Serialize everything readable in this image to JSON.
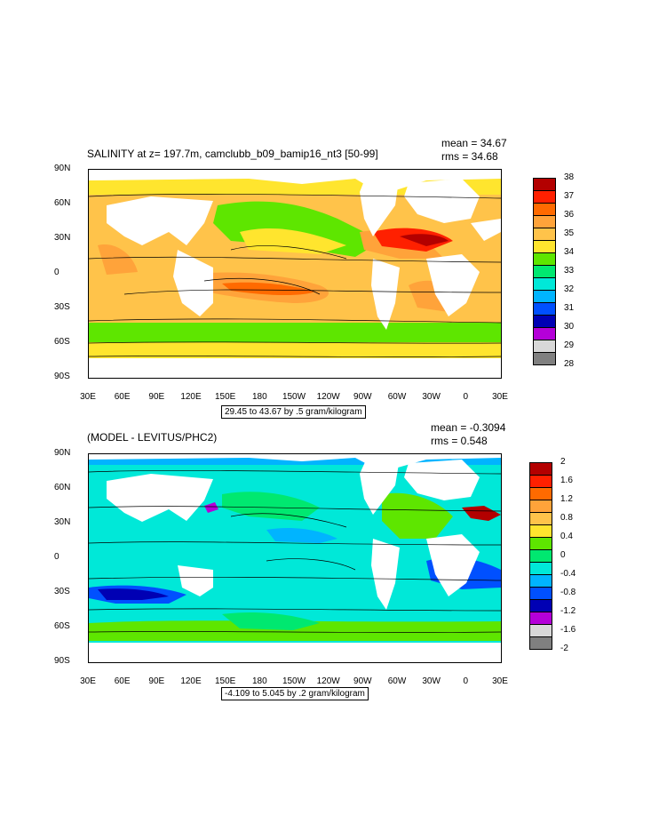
{
  "top_panel": {
    "title": "SALINITY at z= 197.7m, camclubb_b09_bamip16_nt3 [50-99]",
    "mean": "mean = 34.67",
    "rms": "rms = 34.68",
    "caption": "29.45 to 43.67 by .5 gram/kilogram",
    "lat_labels": [
      "90N",
      "60N",
      "30N",
      "0",
      "30S",
      "60S",
      "90S"
    ],
    "lon_labels": [
      "30E",
      "60E",
      "90E",
      "120E",
      "150E",
      "180",
      "150W",
      "120W",
      "90W",
      "60W",
      "30W",
      "0",
      "30E"
    ],
    "colorbar_labels": [
      "38",
      "37",
      "36",
      "35",
      "34",
      "33",
      "32",
      "31",
      "30",
      "29",
      "28"
    ],
    "colorbar_colors": [
      "#b30000",
      "#ff2000",
      "#ff6a00",
      "#ffa33a",
      "#ffc34a",
      "#ffe52e",
      "#5ee600",
      "#00e870",
      "#00e8d8",
      "#00b4ff",
      "#0050ff",
      "#0000b4",
      "#b400d8",
      "#d8d8d8",
      "#808080"
    ]
  },
  "bottom_panel": {
    "title": "(MODEL - LEVITUS/PHC2)",
    "mean": "mean = -0.3094",
    "rms": "rms = 0.548",
    "caption": "-4.109 to 5.045 by .2 gram/kilogram",
    "lat_labels": [
      "90N",
      "60N",
      "30N",
      "0",
      "30S",
      "60S",
      "90S"
    ],
    "lon_labels": [
      "30E",
      "60E",
      "90E",
      "120E",
      "150E",
      "180",
      "150W",
      "120W",
      "90W",
      "60W",
      "30W",
      "0",
      "30E"
    ],
    "colorbar_labels": [
      "2",
      "1.6",
      "1.2",
      "0.8",
      "0.4",
      "0",
      "-0.4",
      "-0.8",
      "-1.2",
      "-1.6",
      "-2"
    ],
    "colorbar_colors": [
      "#b30000",
      "#ff2000",
      "#ff6a00",
      "#ffa33a",
      "#ffc34a",
      "#ffe52e",
      "#5ee600",
      "#00e870",
      "#00e8d8",
      "#00b4ff",
      "#0050ff",
      "#0000b4",
      "#b400d8",
      "#d8d8d8",
      "#808080"
    ]
  },
  "colors": {
    "land": "#ffffff",
    "frame": "#000000"
  }
}
